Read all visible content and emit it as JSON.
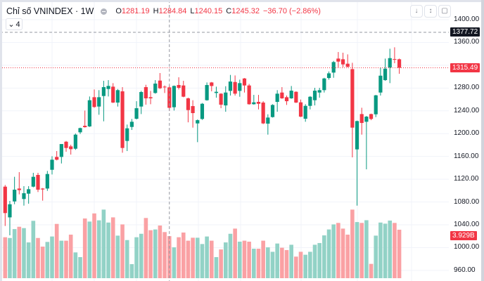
{
  "header": {
    "title": "Chỉ số VNINDEX · 1W",
    "o_label": "O",
    "o_value": "1281.19",
    "h_label": "H",
    "h_value": "1284.84",
    "l_label": "L",
    "l_value": "1240.15",
    "c_label": "C",
    "c_value": "1245.32",
    "change": "−36.70 (−2.86%)",
    "collapse_count": "4",
    "collapse_icon": "chevron-down-icon",
    "buttons": [
      "arrow-down-icon",
      "collapse-arrows-icon",
      "fullscreen-icon"
    ]
  },
  "price_axis": {
    "labels": [
      "1400.00",
      "1360.00",
      "1280.00",
      "1240.00",
      "1200.00",
      "1160.00",
      "1120.00",
      "1080.00",
      "1040.00",
      "1000.00",
      "960.00"
    ],
    "crosshair_price": "1377.72",
    "last_price": "1315.49",
    "last_volume": "3.929B"
  },
  "colors": {
    "up": "#089981",
    "down": "#f23645",
    "vol_up": "#92d2c6",
    "vol_down": "#faa1a4",
    "crosshair_tag": "#131722"
  },
  "chart_data": {
    "type": "candlestick",
    "title": "Chỉ số VNINDEX · 1W",
    "ylim": [
      960,
      1400
    ],
    "crosshair_index": 35,
    "ohlc": [
      [
        1106.9,
        1109.8,
        1037.9,
        1060.5
      ],
      [
        1053,
        1081.9,
        1021.5,
        1076
      ],
      [
        1081,
        1124.2,
        1076.1,
        1101.6
      ],
      [
        1103.6,
        1132.4,
        1093.4,
        1100.8
      ],
      [
        1085.2,
        1107.8,
        1073.6,
        1095.4
      ],
      [
        1094.6,
        1107.8,
        1077,
        1102.4
      ],
      [
        1106.9,
        1131.2,
        1105.7,
        1124.2
      ],
      [
        1127.5,
        1131.2,
        1097.5,
        1101.6
      ],
      [
        1103.6,
        1104.5,
        1082.3,
        1102
      ],
      [
        1103.6,
        1134.5,
        1099.5,
        1129.1
      ],
      [
        1136.5,
        1160.4,
        1128.3,
        1154.2
      ],
      [
        1159.1,
        1169.4,
        1153,
        1154.2
      ],
      [
        1159.1,
        1181.7,
        1147.6,
        1181.7
      ],
      [
        1185.8,
        1187.1,
        1168.2,
        1174.8
      ],
      [
        1177.6,
        1180.5,
        1163.2,
        1172.7
      ],
      [
        1173.5,
        1200.2,
        1171.5,
        1198.2
      ],
      [
        1202.3,
        1210.5,
        1199.4,
        1209.7
      ],
      [
        1213.8,
        1240.5,
        1210.5,
        1211.3
      ],
      [
        1212.6,
        1265.2,
        1211.7,
        1258.6
      ],
      [
        1263.9,
        1277.5,
        1245.4,
        1246.7
      ],
      [
        1247.5,
        1276.3,
        1233.1,
        1263.9
      ],
      [
        1266,
        1292.7,
        1221.6,
        1281.6
      ],
      [
        1278.3,
        1293.9,
        1265.2,
        1283.7
      ],
      [
        1282.4,
        1288.6,
        1253.7,
        1254.5
      ],
      [
        1254.5,
        1278.3,
        1247.5,
        1276.3
      ],
      [
        1274.2,
        1281.6,
        1166.5,
        1174.8
      ],
      [
        1187.1,
        1215.9,
        1169.4,
        1209.3
      ],
      [
        1211.7,
        1225.7,
        1206.4,
        1220.8
      ],
      [
        1226.1,
        1256.9,
        1224.9,
        1244.6
      ],
      [
        1247.5,
        1275,
        1234.3,
        1273
      ],
      [
        1281.6,
        1285.7,
        1250.8,
        1261.9
      ],
      [
        1263.9,
        1275,
        1251.6,
        1261.9
      ],
      [
        1271.3,
        1293.9,
        1270.1,
        1287.8
      ],
      [
        1293.1,
        1306.3,
        1278.3,
        1279.6
      ],
      [
        1282.4,
        1284.5,
        1271.3,
        1281.6
      ],
      [
        1281.19,
        1284.84,
        1240.15,
        1245.32
      ],
      [
        1246.3,
        1284.5,
        1240.5,
        1283.7
      ],
      [
        1285.3,
        1298.9,
        1277.5,
        1280.4
      ],
      [
        1284.5,
        1292.7,
        1263.9,
        1264.8
      ],
      [
        1261.9,
        1263.1,
        1219.8,
        1241.3
      ],
      [
        1248.3,
        1258.6,
        1210.5,
        1236
      ],
      [
        1217.9,
        1224.9,
        1185,
        1223.6
      ],
      [
        1225.7,
        1253.7,
        1224.1,
        1252.4
      ],
      [
        1258.6,
        1289.8,
        1257.8,
        1285.3
      ],
      [
        1289.8,
        1290.6,
        1274.2,
        1283.6
      ],
      [
        1271.3,
        1282.4,
        1263.1,
        1273.4
      ],
      [
        1270.1,
        1270.9,
        1244.6,
        1250.8
      ],
      [
        1249.5,
        1283.2,
        1238.4,
        1272.1
      ],
      [
        1275,
        1303,
        1266.8,
        1291.4
      ],
      [
        1290.6,
        1302.1,
        1266.8,
        1270.1
      ],
      [
        1275,
        1294.7,
        1264.7,
        1288.6
      ],
      [
        1296.8,
        1297.6,
        1272.1,
        1284.5
      ],
      [
        1284.5,
        1287.3,
        1250.8,
        1251.6
      ],
      [
        1251.6,
        1268,
        1250.8,
        1254.9
      ],
      [
        1255.7,
        1268,
        1242.5,
        1252.4
      ],
      [
        1254.5,
        1256.9,
        1216.7,
        1217.9
      ],
      [
        1217.5,
        1233.9,
        1198.2,
        1228.2
      ],
      [
        1229,
        1251.6,
        1228.2,
        1250.3
      ],
      [
        1255.7,
        1276.3,
        1238.4,
        1270.1
      ],
      [
        1272.1,
        1281.6,
        1261.1,
        1261.9
      ],
      [
        1263.9,
        1266.8,
        1250.3,
        1256.9
      ],
      [
        1261.9,
        1283.6,
        1261.1,
        1275.4
      ],
      [
        1273.4,
        1274.2,
        1253.7,
        1254.5
      ],
      [
        1254.9,
        1259.8,
        1229,
        1229.8
      ],
      [
        1226.1,
        1251.6,
        1220.8,
        1248.7
      ],
      [
        1248.7,
        1265.9,
        1242.5,
        1264.7
      ],
      [
        1258.6,
        1280.4,
        1249.5,
        1275.4
      ],
      [
        1272.1,
        1280.4,
        1263.1,
        1276.3
      ],
      [
        1276.3,
        1298,
        1272.1,
        1296.8
      ],
      [
        1297.6,
        1309.1,
        1294.7,
        1305.8
      ],
      [
        1307.1,
        1327.6,
        1298,
        1325.6
      ],
      [
        1331.7,
        1343.2,
        1316.1,
        1326.4
      ],
      [
        1330.5,
        1342,
        1316.5,
        1321.5
      ],
      [
        1322.7,
        1339.1,
        1316.1,
        1317.3
      ],
      [
        1313.2,
        1324.3,
        1158.3,
        1210.5
      ],
      [
        1172.3,
        1222.8,
        1073.6,
        1222
      ],
      [
        1234.3,
        1245.4,
        1198.2,
        1218.7
      ],
      [
        1220.8,
        1231,
        1137.3,
        1229.8
      ],
      [
        1234.3,
        1235.1,
        1223.6,
        1225.7
      ],
      [
        1233.9,
        1268,
        1229,
        1267.2
      ],
      [
        1272.1,
        1316.1,
        1266.8,
        1301.7
      ],
      [
        1293.9,
        1331.7,
        1292.7,
        1314
      ],
      [
        1316.1,
        1349,
        1288.6,
        1332.5
      ],
      [
        1330.9,
        1351.5,
        1323.5,
        1330.1
      ],
      [
        1330.5,
        1331.7,
        1305,
        1315.49
      ]
    ],
    "volume_billions": [
      3.32,
      3.26,
      3.98,
      4.17,
      4.06,
      2.9,
      4.65,
      3.26,
      2.56,
      2.94,
      3.38,
      4.4,
      3.04,
      3.04,
      3.53,
      2.09,
      1.71,
      4.84,
      4.59,
      5.25,
      4.69,
      5.56,
      4.51,
      4.93,
      3.45,
      4.36,
      3.09,
      1.14,
      3.32,
      3.6,
      4.88,
      3.89,
      3.95,
      4.27,
      3.74,
      3.41,
      2.5,
      3.32,
      3.7,
      3.04,
      3.28,
      3.28,
      2.77,
      3.38,
      3.04,
      1.71,
      2.33,
      2.9,
      3.6,
      4.02,
      2.96,
      3.04,
      2.96,
      2.39,
      2.39,
      3.04,
      2.5,
      2.14,
      2.81,
      2.47,
      2.28,
      2.71,
      1.75,
      2.14,
      1.9,
      2.14,
      2.71,
      2.85,
      3.47,
      3.95,
      4.36,
      4.48,
      4.02,
      3.53,
      5.56,
      4.55,
      4.48,
      4.7,
      1.16,
      3.45,
      4.51,
      4.42,
      4.67,
      4.48,
      3.929
    ]
  }
}
